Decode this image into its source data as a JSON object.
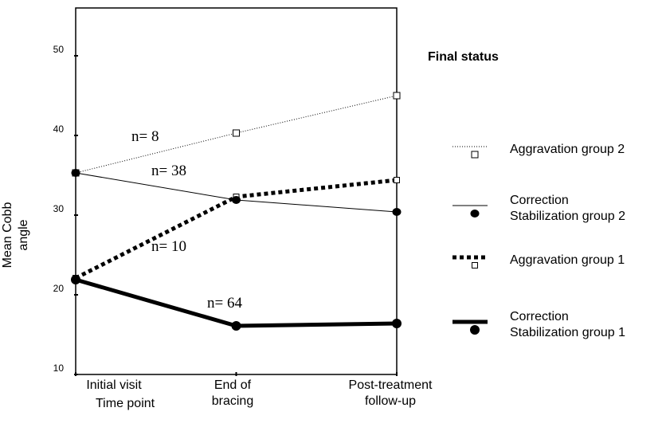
{
  "chart_data": {
    "type": "line",
    "categories": [
      "Initial visit",
      "End of\nbracing",
      "Post-treatment\nfollow-up"
    ],
    "x_label": "Time point",
    "y_label": "Mean Cobb angle",
    "ylim": [
      10,
      56
    ],
    "yticks": [
      10,
      20,
      30,
      40,
      50
    ],
    "legend_title": "Final status",
    "legend_position": "right",
    "series": [
      {
        "name": "Aggravation group 2",
        "color": "#000000",
        "line_style": "dotted",
        "line_width": 1,
        "marker": "square",
        "values": [
          35.3,
          40.3,
          45.0
        ]
      },
      {
        "name": "Correction\nStabilization group 2",
        "color": "#000000",
        "line_style": "solid",
        "line_width": 1,
        "marker": "circle",
        "values": [
          35.3,
          31.9,
          30.4
        ]
      },
      {
        "name": "Aggravation group 1",
        "color": "#000000",
        "line_style": "dotted",
        "line_width": 5,
        "marker": "square",
        "values": [
          22.1,
          32.3,
          34.4
        ]
      },
      {
        "name": "Correction\nStabilization group 1",
        "color": "#000000",
        "line_style": "solid",
        "line_width": 5,
        "marker": "circle",
        "values": [
          21.9,
          16.1,
          16.4
        ]
      }
    ],
    "annotations": [
      "n= 8",
      "n= 38",
      "n= 10",
      "n= 64"
    ]
  }
}
